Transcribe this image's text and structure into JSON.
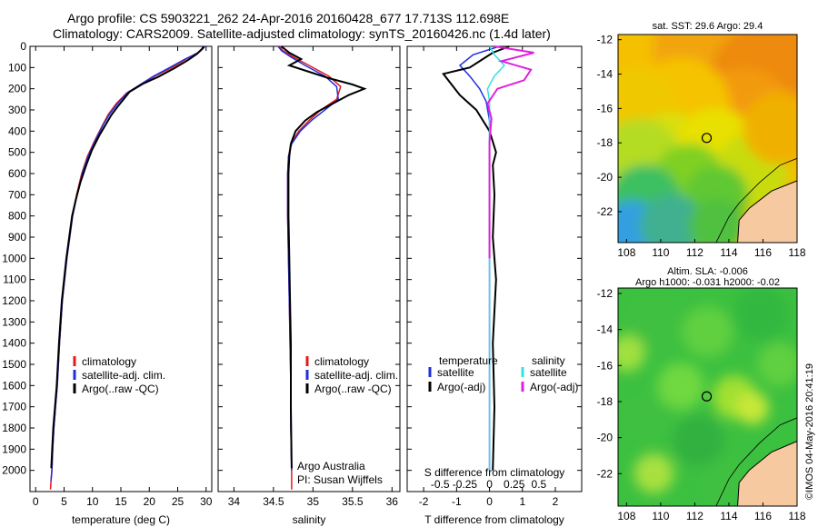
{
  "header": {
    "line1": "Argo profile: CS 5903221_262 24-Apr-2016 20160428_677 17.713S 112.698E",
    "line2": "Climatology: CARS2009. Satellite-adjusted climatology: synTS_20160426.nc (1.4d later)"
  },
  "side_note": "©IMOS 04-May-2016 20:41:19",
  "colors": {
    "climatology": "#e41a1c",
    "satellite": "#1f2fe0",
    "argo": "#000000",
    "sal_satellite": "#33e0e0",
    "sal_argo": "#e020e0",
    "land": "#f7c9a0"
  },
  "chart_data": [
    {
      "type": "line",
      "id": "temperature",
      "xlabel": "temperature (deg C)",
      "ylabel": "",
      "xlim": [
        -1,
        31
      ],
      "ylim": [
        2100,
        0
      ],
      "xticks": [
        0,
        5,
        10,
        15,
        20,
        25,
        30
      ],
      "yticks": [
        0,
        100,
        200,
        300,
        400,
        500,
        600,
        700,
        800,
        900,
        1000,
        1100,
        1200,
        1300,
        1400,
        1500,
        1600,
        1700,
        1800,
        1900,
        2000
      ],
      "legend": [
        "climatology",
        "satellite-adj. clim.",
        "Argo(..raw -QC)"
      ],
      "series": [
        {
          "name": "climatology",
          "x": [
            29.5,
            29.3,
            28.5,
            26.5,
            24,
            21,
            18.5,
            16,
            14.2,
            12.8,
            11.8,
            10.3,
            9.1,
            8.1,
            7.2,
            6.5,
            5.5,
            4.7,
            4.2,
            3.8,
            3.5,
            3.2,
            3.0,
            2.85,
            2.7,
            2.6
          ],
          "y": [
            0,
            10,
            30,
            60,
            100,
            140,
            180,
            220,
            270,
            320,
            370,
            450,
            520,
            600,
            700,
            800,
            1000,
            1200,
            1400,
            1600,
            1700,
            1800,
            1900,
            2000,
            2050,
            2090
          ]
        },
        {
          "name": "satellite-adj. clim.",
          "x": [
            29.8,
            29.5,
            28.6,
            26.3,
            23.6,
            20.8,
            18.4,
            16.1,
            14.4,
            13.0,
            11.9,
            10.4,
            9.2,
            8.2,
            7.3,
            6.5,
            5.5,
            4.7,
            4.2,
            3.8,
            3.5,
            3.2,
            3.0,
            2.85,
            2.7
          ],
          "y": [
            0,
            10,
            30,
            60,
            100,
            140,
            180,
            220,
            270,
            320,
            370,
            450,
            520,
            600,
            700,
            800,
            1000,
            1200,
            1400,
            1600,
            1700,
            1800,
            1900,
            2000,
            2050
          ]
        },
        {
          "name": "Argo(..raw -QC)",
          "x": [
            29.6,
            29.2,
            28.4,
            26.8,
            24.3,
            21.5,
            19.0,
            16.5,
            15.6,
            14.4,
            13.3,
            12.2,
            11.2,
            9.9,
            8.9,
            7.9,
            7.1,
            6.4,
            5.4,
            4.6,
            4.1,
            3.7,
            3.4,
            3.1,
            2.9,
            2.75
          ],
          "y": [
            0,
            15,
            35,
            65,
            105,
            145,
            175,
            215,
            245,
            285,
            325,
            375,
            420,
            490,
            560,
            640,
            720,
            800,
            1000,
            1200,
            1400,
            1600,
            1700,
            1800,
            1900,
            1990
          ]
        }
      ]
    },
    {
      "type": "line",
      "id": "salinity",
      "xlabel": "salinity",
      "xlim": [
        33.8,
        36.1
      ],
      "ylim": [
        2100,
        0
      ],
      "xticks": [
        34,
        34.5,
        35,
        35.5,
        36
      ],
      "legend": [
        "climatology",
        "satellite-adj. clim.",
        "Argo(..raw -QC)"
      ],
      "annotation": [
        "Argo Australia",
        "PI: Susan Wijffels"
      ],
      "series": [
        {
          "name": "climatology",
          "x": [
            34.58,
            34.62,
            34.75,
            34.95,
            35.2,
            35.35,
            35.3,
            35.1,
            34.95,
            34.82,
            34.72,
            34.69,
            34.68,
            34.68,
            34.69,
            34.7,
            34.71,
            34.72,
            34.72,
            34.73,
            34.73
          ],
          "y": [
            0,
            20,
            50,
            90,
            140,
            190,
            250,
            300,
            350,
            400,
            460,
            520,
            600,
            800,
            1000,
            1200,
            1400,
            1600,
            1800,
            2000,
            2090
          ]
        },
        {
          "name": "satellite-adj. clim.",
          "x": [
            34.56,
            34.6,
            34.72,
            34.9,
            35.15,
            35.3,
            35.32,
            35.15,
            34.98,
            34.84,
            34.73,
            34.69,
            34.68,
            34.68,
            34.69,
            34.7,
            34.71,
            34.72,
            34.72,
            34.73
          ],
          "y": [
            0,
            20,
            50,
            90,
            140,
            190,
            250,
            300,
            350,
            400,
            460,
            520,
            600,
            800,
            1000,
            1200,
            1400,
            1600,
            1800,
            2000
          ]
        },
        {
          "name": "Argo(..raw -QC)",
          "x": [
            34.6,
            34.7,
            34.85,
            34.7,
            34.95,
            35.2,
            35.5,
            35.65,
            35.45,
            35.25,
            35.05,
            34.9,
            34.78,
            34.72,
            34.7,
            34.69,
            34.69,
            34.7,
            34.71,
            34.72,
            34.72,
            34.73
          ],
          "y": [
            0,
            30,
            60,
            90,
            120,
            150,
            180,
            200,
            230,
            270,
            310,
            350,
            400,
            460,
            520,
            600,
            800,
            1000,
            1200,
            1400,
            1700,
            1990
          ]
        }
      ]
    },
    {
      "type": "line",
      "id": "difference",
      "xlabel": "T difference from climatology",
      "xlabel_top": "S difference from climatology",
      "xlim": [
        -2.5,
        2.8
      ],
      "ylim": [
        2100,
        0
      ],
      "xticks": [
        -2,
        -1,
        0,
        1,
        2
      ],
      "xticks_top": [
        -0.5,
        -0.25,
        0,
        0.25,
        0.5
      ],
      "xticks_top_labels": [
        "-0.5",
        "-0.25",
        "0",
        "0.25",
        "0.5"
      ],
      "legend_titles": [
        "temperature",
        "salinity"
      ],
      "legend": [
        "satellite",
        "Argo(-adj)",
        "satellite",
        "Argo(-adj)"
      ],
      "series": [
        {
          "name": "temperature satellite",
          "x": [
            0.3,
            -0.5,
            -0.9,
            -0.6,
            -0.3,
            -0.1,
            0.0,
            0.0,
            0.0,
            0.0,
            0.0,
            0.0,
            0.0
          ],
          "y": [
            0,
            40,
            90,
            140,
            200,
            260,
            350,
            450,
            600,
            800,
            1200,
            1600,
            2000
          ]
        },
        {
          "name": "temperature Argo(-adj)",
          "x": [
            0.6,
            0.1,
            -0.2,
            -0.6,
            -1.4,
            -1.2,
            -0.9,
            -0.4,
            0.0,
            0.2,
            0.1,
            0.15,
            0.1,
            0.2,
            0.1,
            0.15,
            0.1
          ],
          "y": [
            0,
            30,
            60,
            100,
            130,
            170,
            230,
            300,
            400,
            500,
            560,
            700,
            900,
            1100,
            1400,
            1700,
            2000
          ]
        },
        {
          "name": "salinity satellite",
          "x": [
            0.0,
            0.05,
            0.15,
            0.05,
            -0.02,
            0.0,
            0.0,
            0.0,
            0.0,
            0.0,
            0.0,
            0.0
          ],
          "y": [
            0,
            40,
            90,
            140,
            200,
            260,
            350,
            450,
            700,
            1000,
            1500,
            2000
          ]
        },
        {
          "name": "salinity Argo(-adj)",
          "x": [
            0.05,
            0.45,
            0.12,
            0.42,
            0.35,
            0.08,
            -0.02,
            0.02,
            0.0,
            0.0,
            0.0
          ],
          "y": [
            0,
            30,
            70,
            110,
            160,
            200,
            270,
            340,
            450,
            700,
            1000
          ]
        }
      ]
    },
    {
      "type": "heatmap",
      "id": "sst_map",
      "title": "sat. SST: 29.6 Argo: 29.4",
      "xlim": [
        107.5,
        118
      ],
      "ylim": [
        -23.8,
        -11.7
      ],
      "xticks": [
        108,
        110,
        112,
        114,
        116,
        118
      ],
      "yticks": [
        -12,
        -14,
        -16,
        -18,
        -20,
        -22
      ],
      "marker": {
        "lon": 112.698,
        "lat": -17.713
      }
    },
    {
      "type": "heatmap",
      "id": "sla_map",
      "title": "Altim. SLA: -0.006",
      "subtitle": "Argo h1000: -0.031 h2000: -0.02",
      "xlim": [
        107.5,
        118
      ],
      "ylim": [
        -23.8,
        -11.7
      ],
      "xticks": [
        108,
        110,
        112,
        114,
        116,
        118
      ],
      "yticks": [
        -12,
        -14,
        -16,
        -18,
        -20,
        -22
      ],
      "marker": {
        "lon": 112.698,
        "lat": -17.713
      }
    }
  ]
}
